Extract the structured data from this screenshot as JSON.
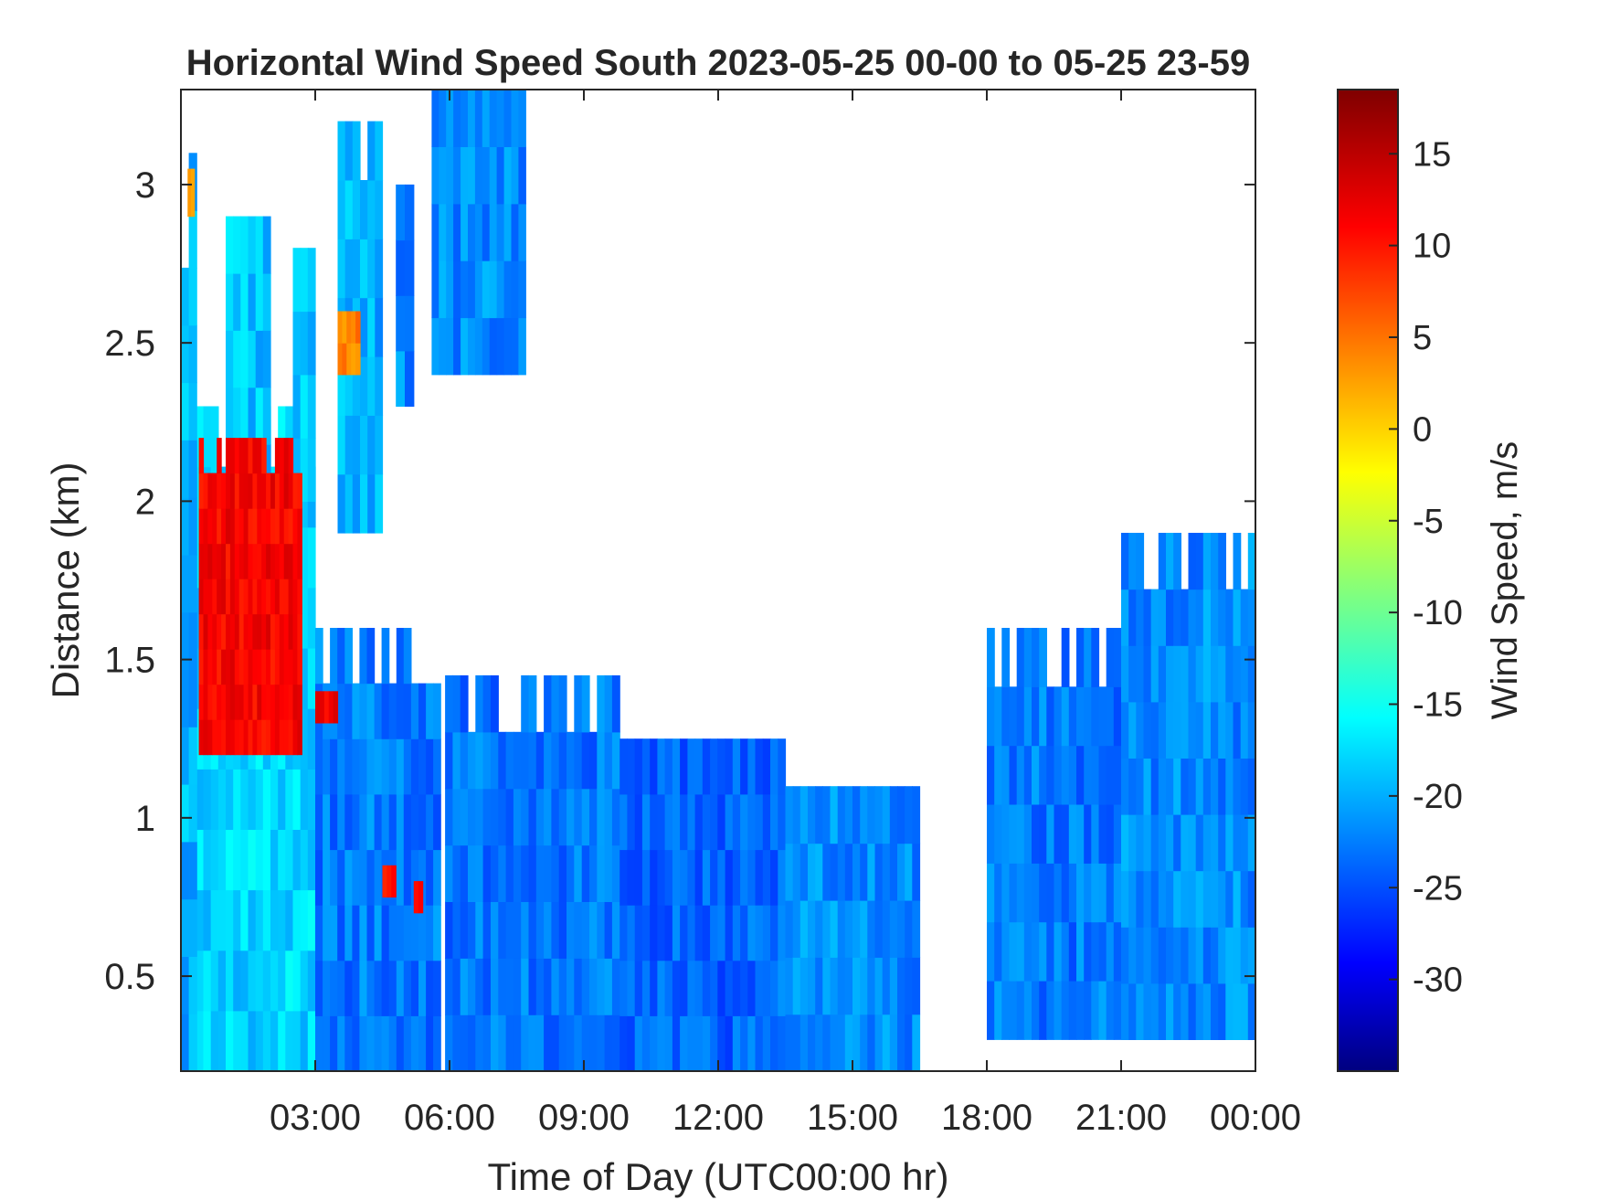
{
  "chart_data": {
    "type": "heatmap",
    "title": "Horizontal Wind Speed South 2023-05-25 00-00 to 05-25 23-59",
    "xlabel": "Time of Day (UTC00:00 hr)",
    "ylabel": "Distance (km)",
    "colorbar_label": "Wind Speed, m/s",
    "x_unit": "hours",
    "xlim": [
      0,
      24
    ],
    "ylim": [
      0.2,
      3.3
    ],
    "clim": [
      -35,
      18.5
    ],
    "colormap": "jet",
    "x_ticks": [
      {
        "value": 3,
        "label": "03:00"
      },
      {
        "value": 6,
        "label": "06:00"
      },
      {
        "value": 9,
        "label": "09:00"
      },
      {
        "value": 12,
        "label": "12:00"
      },
      {
        "value": 15,
        "label": "15:00"
      },
      {
        "value": 18,
        "label": "18:00"
      },
      {
        "value": 21,
        "label": "21:00"
      },
      {
        "value": 24,
        "label": "00:00"
      }
    ],
    "y_ticks": [
      {
        "value": 0.5,
        "label": "0.5"
      },
      {
        "value": 1,
        "label": "1"
      },
      {
        "value": 1.5,
        "label": "1.5"
      },
      {
        "value": 2,
        "label": "2"
      },
      {
        "value": 2.5,
        "label": "2.5"
      },
      {
        "value": 3,
        "label": "3"
      }
    ],
    "colorbar_ticks": [
      {
        "value": 15,
        "label": "15"
      },
      {
        "value": 10,
        "label": "10"
      },
      {
        "value": 5,
        "label": "5"
      },
      {
        "value": 0,
        "label": "0"
      },
      {
        "value": -5,
        "label": "-5"
      },
      {
        "value": -10,
        "label": "-10"
      },
      {
        "value": -15,
        "label": "-15"
      },
      {
        "value": -20,
        "label": "-20"
      },
      {
        "value": -25,
        "label": "-25"
      },
      {
        "value": -30,
        "label": "-30"
      }
    ],
    "grid": false,
    "coverage_regions": [
      {
        "t": [
          0.0,
          3.0
        ],
        "h": [
          0.2,
          2.3
        ],
        "v": -17
      },
      {
        "t": [
          0.0,
          0.35
        ],
        "h": [
          0.2,
          3.1
        ],
        "v": -19
      },
      {
        "t": [
          1.0,
          2.0
        ],
        "h": [
          2.0,
          2.9
        ],
        "v": -18
      },
      {
        "t": [
          2.5,
          3.0
        ],
        "h": [
          2.0,
          2.8
        ],
        "v": -18
      },
      {
        "t": [
          3.0,
          5.8
        ],
        "h": [
          0.2,
          1.6
        ],
        "v": -22
      },
      {
        "t": [
          3.5,
          4.5
        ],
        "h": [
          1.9,
          3.2
        ],
        "v": -19
      },
      {
        "t": [
          4.8,
          5.2
        ],
        "h": [
          2.3,
          3.0
        ],
        "v": -21
      },
      {
        "t": [
          5.6,
          7.7
        ],
        "h": [
          2.4,
          3.3
        ],
        "v": -21
      },
      {
        "t": [
          5.9,
          9.8
        ],
        "h": [
          0.2,
          1.45
        ],
        "v": -22
      },
      {
        "t": [
          9.8,
          13.5
        ],
        "h": [
          0.2,
          1.25
        ],
        "v": -23
      },
      {
        "t": [
          13.5,
          16.5
        ],
        "h": [
          0.2,
          1.1
        ],
        "v": -21
      },
      {
        "t": [
          18.0,
          21.0
        ],
        "h": [
          0.3,
          1.6
        ],
        "v": -22
      },
      {
        "t": [
          21.0,
          24.0
        ],
        "h": [
          0.3,
          1.9
        ],
        "v": -21
      }
    ],
    "strong_features": [
      {
        "t": [
          0.4,
          2.7
        ],
        "h": [
          1.2,
          2.2
        ],
        "v": 12
      },
      {
        "t": [
          3.0,
          3.5
        ],
        "h": [
          1.3,
          1.4
        ],
        "v": 12
      },
      {
        "t": [
          3.5,
          4.0
        ],
        "h": [
          2.4,
          2.6
        ],
        "v": 5
      },
      {
        "t": [
          4.5,
          4.8
        ],
        "h": [
          0.75,
          0.85
        ],
        "v": 10
      },
      {
        "t": [
          5.2,
          5.4
        ],
        "h": [
          0.7,
          0.8
        ],
        "v": 10
      },
      {
        "t": [
          0.15,
          0.3
        ],
        "h": [
          2.9,
          3.05
        ],
        "v": 3
      }
    ]
  }
}
